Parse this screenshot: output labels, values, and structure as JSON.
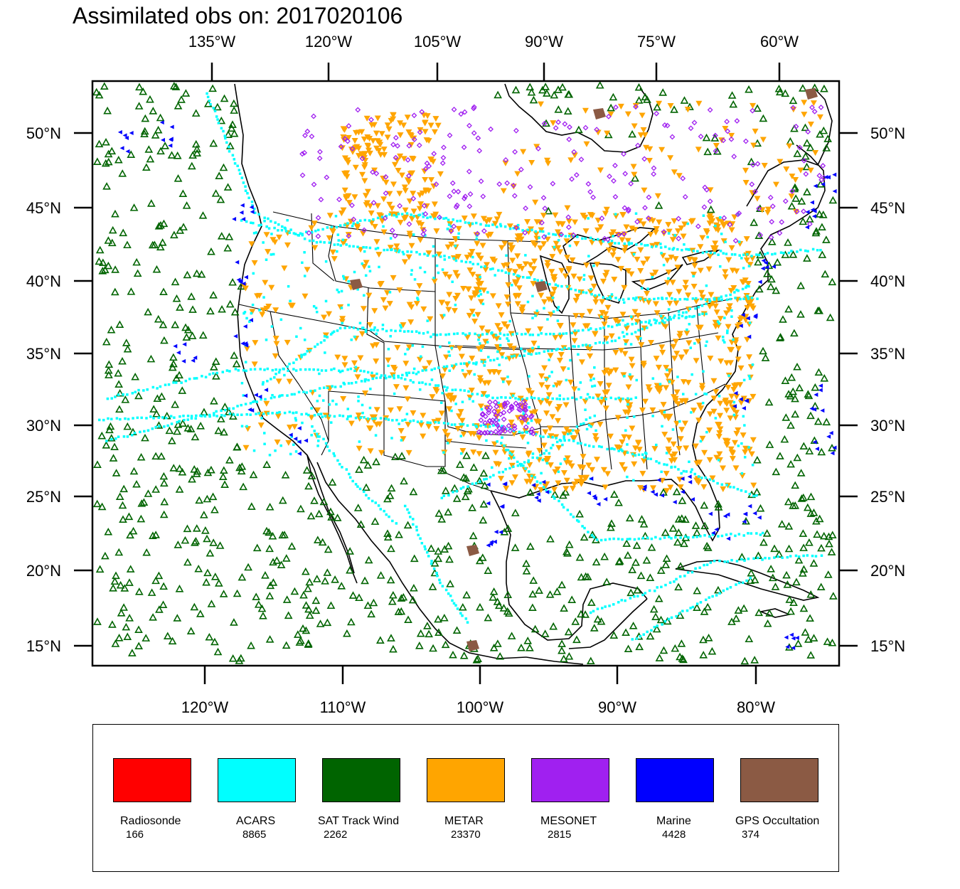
{
  "title": "Assimilated obs on: 2017020106",
  "top_axis_labels": [
    "135°W",
    "120°W",
    "105°W",
    "90°W",
    "75°W",
    "60°W"
  ],
  "bottom_axis_labels": [
    "120°W",
    "110°W",
    "100°W",
    "90°W",
    "80°W"
  ],
  "left_axis_labels": [
    "50°N",
    "45°N",
    "40°N",
    "35°N",
    "30°N",
    "25°N",
    "20°N",
    "15°N"
  ],
  "right_axis_labels": [
    "50°N",
    "45°N",
    "40°N",
    "35°N",
    "30°N",
    "25°N",
    "20°N",
    "15°N"
  ],
  "legend": [
    {
      "name": "Radiosonde",
      "count": "166",
      "color": "#ff0000"
    },
    {
      "name": "ACARS",
      "count": "8865",
      "color": "#00ffff"
    },
    {
      "name": "SAT Track Wind",
      "count": "2262",
      "color": "#006400"
    },
    {
      "name": "METAR",
      "count": "23370",
      "color": "#ffa500"
    },
    {
      "name": "MESONET",
      "count": "2815",
      "color": "#a020f0"
    },
    {
      "name": "Marine",
      "count": "4428",
      "color": "#0000ff"
    },
    {
      "name": "GPS Occultation",
      "count": "374",
      "color": "#8b5a44"
    }
  ]
}
